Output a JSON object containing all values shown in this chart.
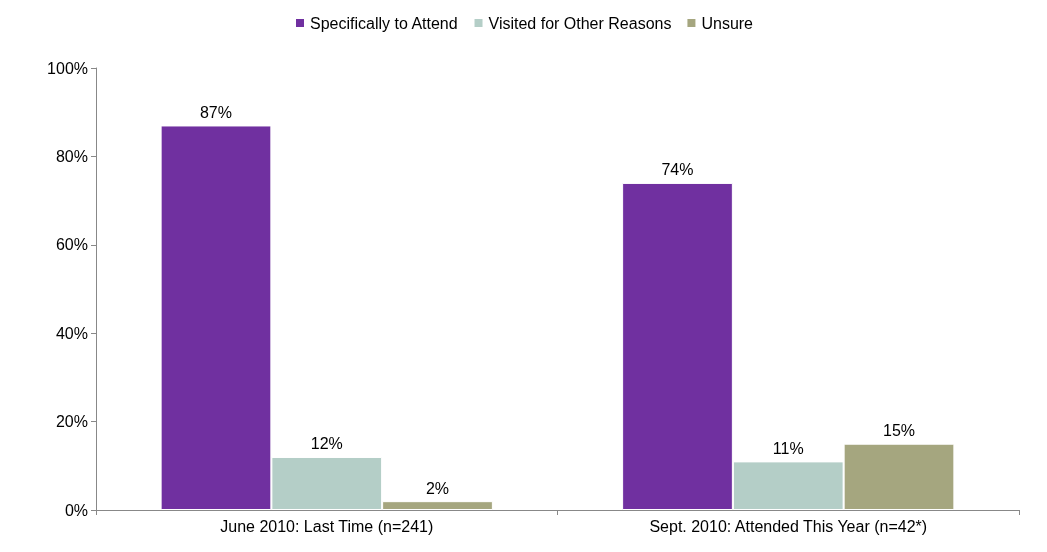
{
  "chart_data": {
    "type": "bar",
    "categories": [
      "June 2010: Last Time (n=241)",
      "Sept. 2010: Attended This Year (n=42*)"
    ],
    "series": [
      {
        "name": "Specifically to Attend",
        "color": "#7030a0",
        "values": [
          87,
          74
        ],
        "value_labels": [
          "87%",
          "74%"
        ]
      },
      {
        "name": "Visited for Other Reasons",
        "color": "#b4cec7",
        "values": [
          12,
          11
        ],
        "value_labels": [
          "12%",
          "11%"
        ]
      },
      {
        "name": "Unsure",
        "color": "#a5a67f",
        "values": [
          2,
          15
        ],
        "value_labels": [
          "2%",
          "15%"
        ]
      }
    ],
    "ylim": [
      0,
      100
    ],
    "yticks": [
      {
        "value": 0,
        "label": "0%"
      },
      {
        "value": 20,
        "label": "20%"
      },
      {
        "value": 40,
        "label": "40%"
      },
      {
        "value": 60,
        "label": "60%"
      },
      {
        "value": 80,
        "label": "80%"
      },
      {
        "value": 100,
        "label": "100%"
      }
    ],
    "grid": false,
    "legend": "top"
  }
}
